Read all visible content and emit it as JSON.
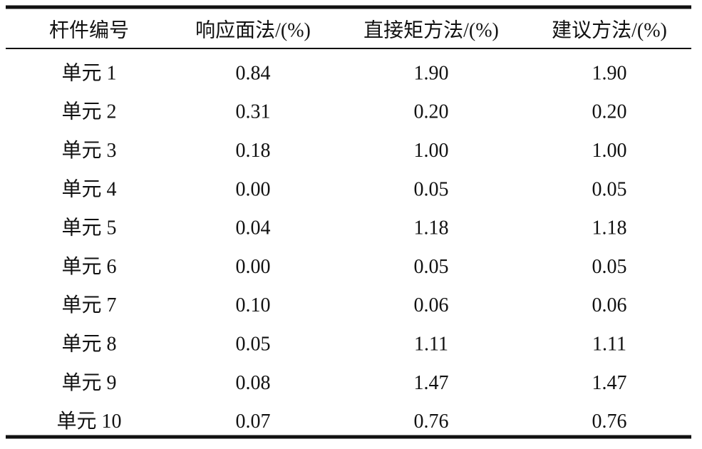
{
  "table": {
    "header": [
      "杆件编号",
      "响应面法/(%)",
      "直接矩方法/(%)",
      "建议方法/(%)"
    ],
    "rows": [
      [
        "单元 1",
        "0.84",
        "1.90",
        "1.90"
      ],
      [
        "单元 2",
        "0.31",
        "0.20",
        "0.20"
      ],
      [
        "单元 3",
        "0.18",
        "1.00",
        "1.00"
      ],
      [
        "单元 4",
        "0.00",
        "0.05",
        "0.05"
      ],
      [
        "单元 5",
        "0.04",
        "1.18",
        "1.18"
      ],
      [
        "单元 6",
        "0.00",
        "0.05",
        "0.05"
      ],
      [
        "单元 7",
        "0.10",
        "0.06",
        "0.06"
      ],
      [
        "单元 8",
        "0.05",
        "1.11",
        "1.11"
      ],
      [
        "单元 9",
        "0.08",
        "1.47",
        "1.47"
      ],
      [
        "单元 10",
        "0.07",
        "0.76",
        "0.76"
      ]
    ]
  }
}
